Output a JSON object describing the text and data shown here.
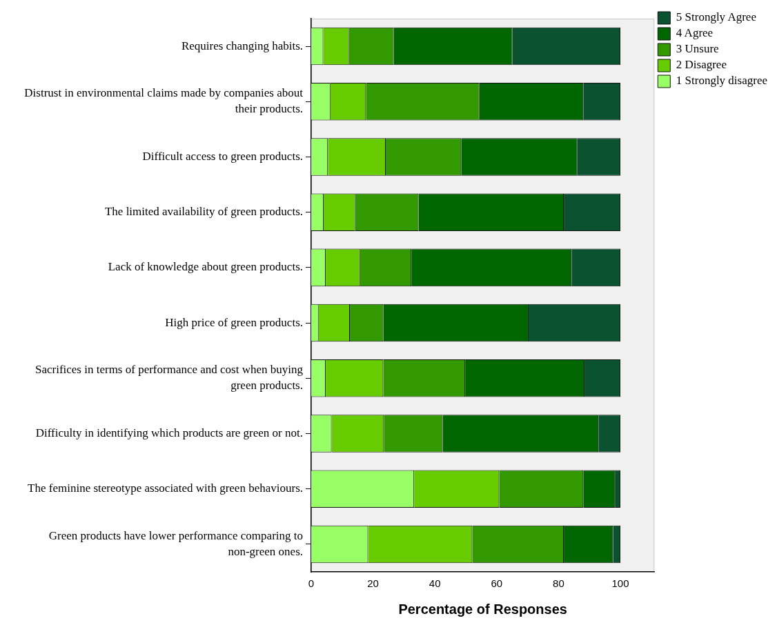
{
  "chart_data": {
    "type": "bar",
    "orientation": "horizontal",
    "stacked": true,
    "xlabel": "Percentage of Responses",
    "categories": [
      "Requires changing habits.",
      "Distrust in environmental claims made by companies about their products.",
      "Difficult access to green products.",
      "The limited availability of green products.",
      "Lack of knowledge about green products.",
      "High price of green products.",
      "Sacrifices in terms of performance and cost when buying green products.",
      "Difficulty in identifying which products are green or not.",
      "The feminine stereotype associated with green behaviours.",
      "Green products have lower performance comparing to non-green ones."
    ],
    "series": [
      {
        "name": "1 Strongly disagree",
        "color": "#99ff66",
        "values": [
          3.9,
          6.2,
          5.4,
          4.0,
          4.7,
          2.4,
          4.7,
          6.6,
          33.3,
          18.4
        ]
      },
      {
        "name": "2 Disagree",
        "color": "#66cc00",
        "values": [
          8.3,
          11.5,
          18.7,
          10.2,
          11.1,
          10.1,
          18.6,
          16.9,
          27.5,
          33.7
        ]
      },
      {
        "name": "3 Unsure",
        "color": "#339900",
        "values": [
          14.5,
          36.7,
          24.4,
          20.5,
          16.6,
          10.8,
          26.5,
          19.0,
          27.2,
          29.6
        ]
      },
      {
        "name": "4 Agree",
        "color": "#006600",
        "values": [
          38.4,
          33.6,
          37.6,
          47.0,
          51.8,
          47.0,
          38.6,
          50.4,
          10.4,
          15.9
        ]
      },
      {
        "name": "5 Strongly Agree",
        "color": "#0a5230",
        "values": [
          34.9,
          12.0,
          13.9,
          18.3,
          15.8,
          29.7,
          11.6,
          7.1,
          1.6,
          2.4
        ]
      }
    ],
    "xlim": [
      0,
      111
    ],
    "xticks": [
      0,
      20,
      40,
      60,
      80,
      100
    ],
    "grid": false,
    "legend": "top right"
  }
}
